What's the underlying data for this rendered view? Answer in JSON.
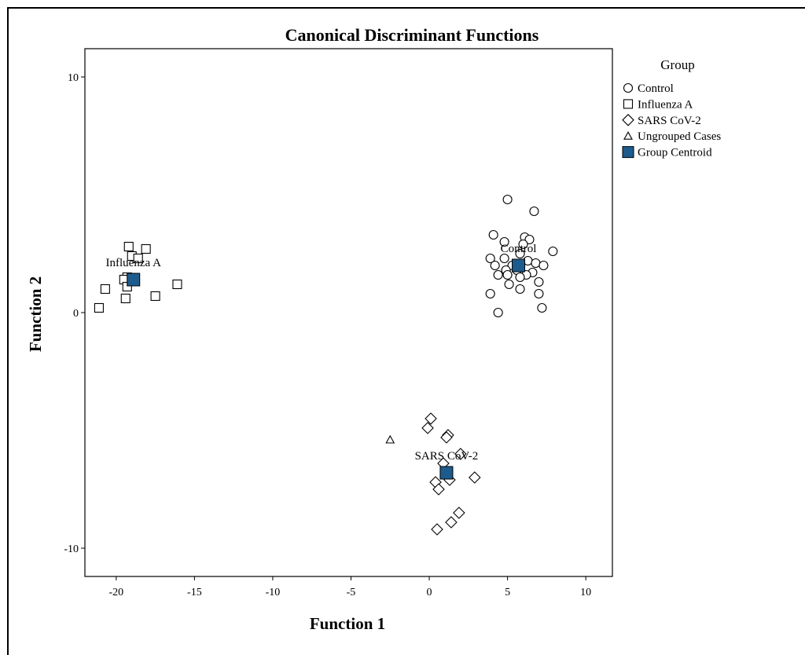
{
  "chart_data": {
    "type": "scatter",
    "title": "Canonical Discriminant Functions",
    "xlabel": "Function 1",
    "ylabel": "Function 2",
    "xlim": [
      -22,
      11.7
    ],
    "ylim": [
      -11.2,
      11.2
    ],
    "x_ticks": [
      -20,
      -15,
      -10,
      -5,
      0,
      5,
      10
    ],
    "y_ticks": [
      -10,
      0,
      10
    ],
    "legend_title": "Group",
    "legend_position": "right",
    "colors": {
      "centroid": "#1d5b8c",
      "marker_stroke": "#000000"
    },
    "series": [
      {
        "name": "Control",
        "marker": "circle",
        "points": [
          [
            5.0,
            4.8
          ],
          [
            6.7,
            4.3
          ],
          [
            4.1,
            3.3
          ],
          [
            6.1,
            3.2
          ],
          [
            6.4,
            3.1
          ],
          [
            4.8,
            3.0
          ],
          [
            6.0,
            2.9
          ],
          [
            7.9,
            2.6
          ],
          [
            5.8,
            2.5
          ],
          [
            3.9,
            2.3
          ],
          [
            4.8,
            2.3
          ],
          [
            6.3,
            2.2
          ],
          [
            6.8,
            2.1
          ],
          [
            4.2,
            2.0
          ],
          [
            5.3,
            2.0
          ],
          [
            7.3,
            2.0
          ],
          [
            4.9,
            1.8
          ],
          [
            5.6,
            1.8
          ],
          [
            6.6,
            1.7
          ],
          [
            4.4,
            1.6
          ],
          [
            5.0,
            1.6
          ],
          [
            6.2,
            1.6
          ],
          [
            5.8,
            1.5
          ],
          [
            7.0,
            1.3
          ],
          [
            5.1,
            1.2
          ],
          [
            5.8,
            1.0
          ],
          [
            3.9,
            0.8
          ],
          [
            7.0,
            0.8
          ],
          [
            7.2,
            0.2
          ],
          [
            4.4,
            0.0
          ]
        ]
      },
      {
        "name": "Influenza A",
        "marker": "square",
        "points": [
          [
            -19.2,
            2.8
          ],
          [
            -18.1,
            2.7
          ],
          [
            -19.0,
            2.4
          ],
          [
            -18.6,
            2.3
          ],
          [
            -19.3,
            1.5
          ],
          [
            -19.5,
            1.4
          ],
          [
            -16.1,
            1.2
          ],
          [
            -19.3,
            1.1
          ],
          [
            -20.7,
            1.0
          ],
          [
            -17.5,
            0.7
          ],
          [
            -19.4,
            0.6
          ],
          [
            -21.1,
            0.2
          ]
        ]
      },
      {
        "name": "SARS CoV-2",
        "marker": "diamond",
        "points": [
          [
            0.1,
            -4.5
          ],
          [
            -0.1,
            -4.9
          ],
          [
            1.2,
            -5.2
          ],
          [
            1.1,
            -5.3
          ],
          [
            2.0,
            -6.0
          ],
          [
            0.9,
            -6.4
          ],
          [
            2.9,
            -7.0
          ],
          [
            1.3,
            -7.1
          ],
          [
            0.4,
            -7.2
          ],
          [
            0.6,
            -7.5
          ],
          [
            1.9,
            -8.5
          ],
          [
            1.4,
            -8.9
          ],
          [
            0.5,
            -9.2
          ]
        ]
      },
      {
        "name": "Ungrouped Cases",
        "marker": "triangle",
        "points": [
          [
            -2.5,
            -5.4
          ]
        ]
      },
      {
        "name": "Group Centroid",
        "marker": "filled-square",
        "points": [
          [
            5.7,
            2.0
          ],
          [
            -18.9,
            1.4
          ],
          [
            1.1,
            -6.8
          ]
        ],
        "labels": [
          "Control",
          "Influenza A",
          "SARS CoV-2"
        ]
      }
    ]
  }
}
